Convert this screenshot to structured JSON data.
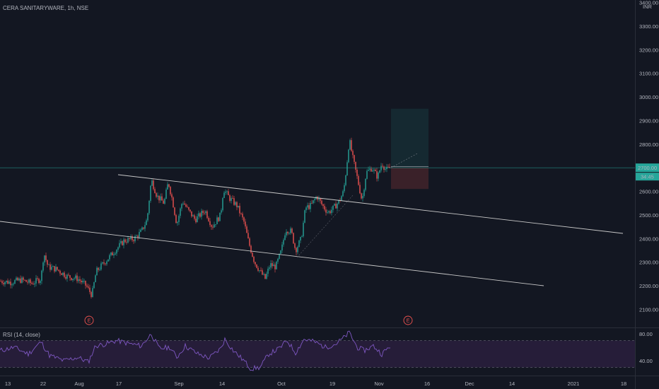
{
  "header": {
    "symbol": "CERA SANITARYWARE, 1h, NSE",
    "currency": "INR"
  },
  "price_axis": {
    "ticks": [
      "3400.00",
      "3300.00",
      "3200.00",
      "3100.00",
      "3000.00",
      "2900.00",
      "2800.00",
      "2700.00",
      "2600.00",
      "2500.00",
      "2400.00",
      "2300.00",
      "2200.00",
      "2100.00"
    ],
    "current_price": "2700.00",
    "countdown": "34:45"
  },
  "rsi": {
    "label": "RSI (14, close)",
    "ticks": [
      "80.00",
      "40.00"
    ],
    "upper_band": 70,
    "lower_band": 30
  },
  "time_axis": {
    "ticks": [
      "13",
      "22",
      "Aug",
      "17",
      "Sep",
      "14",
      "Oct",
      "19",
      "Nov",
      "16",
      "Dec",
      "14",
      "2021",
      "18"
    ]
  },
  "earnings_markers": [
    "E",
    "E"
  ],
  "colors": {
    "background": "#131722",
    "up": "#26a69a",
    "down": "#ef5350",
    "rsi_line": "#7e57c2",
    "rsi_band": "#2a1f3d",
    "trendline": "#c8c8c8",
    "price_line": "#26a69a"
  },
  "chart_data": [
    {
      "type": "candlestick",
      "title": "CERA SANITARYWARE, 1h, NSE",
      "ylim": [
        2100,
        3400
      ],
      "close_path": [
        [
          0,
          2220
        ],
        [
          15,
          2215
        ],
        [
          30,
          2225
        ],
        [
          45,
          2210
        ],
        [
          58,
          2230
        ],
        [
          62,
          2340
        ],
        [
          68,
          2280
        ],
        [
          80,
          2270
        ],
        [
          95,
          2240
        ],
        [
          110,
          2230
        ],
        [
          122,
          2200
        ],
        [
          130,
          2160
        ],
        [
          136,
          2260
        ],
        [
          148,
          2300
        ],
        [
          160,
          2340
        ],
        [
          175,
          2390
        ],
        [
          190,
          2400
        ],
        [
          200,
          2430
        ],
        [
          208,
          2480
        ],
        [
          214,
          2650
        ],
        [
          222,
          2580
        ],
        [
          232,
          2550
        ],
        [
          238,
          2640
        ],
        [
          244,
          2560
        ],
        [
          250,
          2460
        ],
        [
          258,
          2560
        ],
        [
          266,
          2520
        ],
        [
          276,
          2480
        ],
        [
          290,
          2520
        ],
        [
          300,
          2450
        ],
        [
          312,
          2500
        ],
        [
          316,
          2610
        ],
        [
          325,
          2570
        ],
        [
          335,
          2540
        ],
        [
          345,
          2470
        ],
        [
          352,
          2380
        ],
        [
          360,
          2300
        ],
        [
          368,
          2260
        ],
        [
          375,
          2230
        ],
        [
          382,
          2290
        ],
        [
          390,
          2280
        ],
        [
          398,
          2350
        ],
        [
          404,
          2440
        ],
        [
          412,
          2430
        ],
        [
          418,
          2350
        ],
        [
          426,
          2400
        ],
        [
          432,
          2530
        ],
        [
          440,
          2540
        ],
        [
          448,
          2580
        ],
        [
          456,
          2540
        ],
        [
          464,
          2510
        ],
        [
          472,
          2530
        ],
        [
          480,
          2560
        ],
        [
          486,
          2600
        ],
        [
          490,
          2700
        ],
        [
          494,
          2820
        ],
        [
          499,
          2740
        ],
        [
          505,
          2660
        ],
        [
          512,
          2560
        ],
        [
          518,
          2680
        ],
        [
          526,
          2700
        ],
        [
          534,
          2660
        ],
        [
          540,
          2720
        ],
        [
          546,
          2690
        ],
        [
          552,
          2700
        ]
      ],
      "current_price": 2700,
      "earnings_events": [
        "E",
        "E"
      ]
    },
    {
      "type": "line",
      "title": "RSI (14, close)",
      "ylim": [
        20,
        90
      ],
      "bands": [
        30,
        70
      ],
      "values_path": [
        [
          0,
          55
        ],
        [
          20,
          60
        ],
        [
          40,
          50
        ],
        [
          58,
          68
        ],
        [
          70,
          48
        ],
        [
          90,
          40
        ],
        [
          110,
          45
        ],
        [
          125,
          38
        ],
        [
          135,
          62
        ],
        [
          150,
          65
        ],
        [
          165,
          70
        ],
        [
          180,
          66
        ],
        [
          200,
          62
        ],
        [
          214,
          80
        ],
        [
          225,
          58
        ],
        [
          240,
          60
        ],
        [
          250,
          45
        ],
        [
          262,
          62
        ],
        [
          280,
          50
        ],
        [
          296,
          44
        ],
        [
          312,
          58
        ],
        [
          318,
          72
        ],
        [
          330,
          55
        ],
        [
          345,
          40
        ],
        [
          355,
          28
        ],
        [
          368,
          30
        ],
        [
          380,
          50
        ],
        [
          395,
          58
        ],
        [
          406,
          70
        ],
        [
          418,
          52
        ],
        [
          430,
          72
        ],
        [
          445,
          68
        ],
        [
          460,
          60
        ],
        [
          475,
          65
        ],
        [
          486,
          74
        ],
        [
          494,
          82
        ],
        [
          505,
          60
        ],
        [
          515,
          55
        ],
        [
          528,
          62
        ],
        [
          540,
          50
        ],
        [
          552,
          62
        ]
      ]
    }
  ]
}
